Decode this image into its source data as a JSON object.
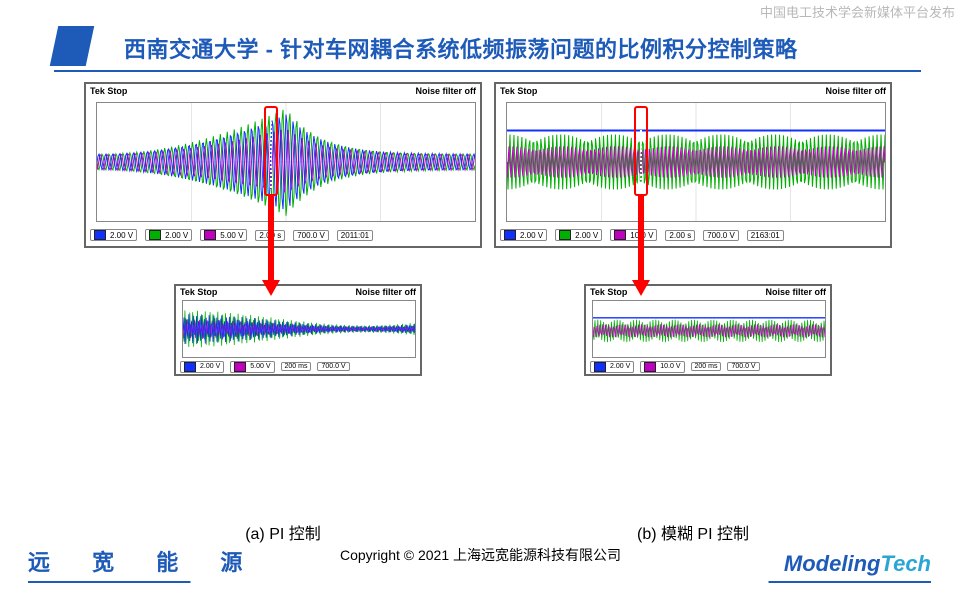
{
  "watermark": "中国电工技术学会新媒体平台发布",
  "title": "西南交通大学 - 针对车网耦合系统低频振荡问题的比例积分控制策略",
  "colors": {
    "accent": "#1e5bb8",
    "arrow": "#ff0000",
    "ch1": "#1030ff",
    "ch2": "#00b000",
    "ch3": "#c000c0",
    "ch4": "#ffcc00",
    "grid": "#bbbbbb",
    "frame": "#666666"
  },
  "panel_a": {
    "caption": "(a) PI 控制",
    "top_left": "Tek Stop",
    "top_right": "Noise filter off",
    "channels": [
      {
        "id": "1",
        "val": "2.00 V",
        "color": "#1030ff"
      },
      {
        "id": "2",
        "val": "2.00 V",
        "color": "#00b000"
      },
      {
        "id": "3",
        "val": "5.00 V",
        "color": "#c000c0"
      }
    ],
    "timebase": "2.00 s",
    "trigger": "700.0 V",
    "counter": "2011:01",
    "zoom": {
      "top_left": "Tek Stop",
      "top_right": "Noise filter off",
      "channels": [
        {
          "id": "1",
          "val": "2.00 V",
          "color": "#1030ff"
        },
        {
          "id": "2",
          "val": "2.00 V",
          "color": "#00b000"
        },
        {
          "id": "3",
          "val": "5.00 V",
          "color": "#c000c0"
        }
      ],
      "timebase": "200 ms",
      "trigger": "700.0 V"
    }
  },
  "panel_b": {
    "caption": "(b)  模糊 PI 控制",
    "top_left": "Tek Stop",
    "top_right": "Noise filter off",
    "channels": [
      {
        "id": "1",
        "val": "2.00 V",
        "color": "#1030ff"
      },
      {
        "id": "2",
        "val": "2.00 V",
        "color": "#00b000"
      },
      {
        "id": "3",
        "val": "10.0 V",
        "color": "#c000c0"
      }
    ],
    "timebase": "2.00 s",
    "trigger": "700.0 V",
    "counter": "2163:01",
    "zoom": {
      "top_left": "Tek Stop",
      "top_right": "Noise filter off",
      "channels": [
        {
          "id": "1",
          "val": "2.00 V",
          "color": "#1030ff"
        },
        {
          "id": "2",
          "val": "2.00 V",
          "color": "#00b000"
        },
        {
          "id": "3",
          "val": "10.0 V",
          "color": "#c000c0"
        }
      ],
      "timebase": "200 ms",
      "trigger": "700.0 V"
    }
  },
  "footer": {
    "copyright": "Copyright © 2021 上海远宽能源科技有限公司",
    "logo_left": "远 宽 能 源",
    "logo_right_1": "Modeling",
    "logo_right_2": "Tech"
  }
}
